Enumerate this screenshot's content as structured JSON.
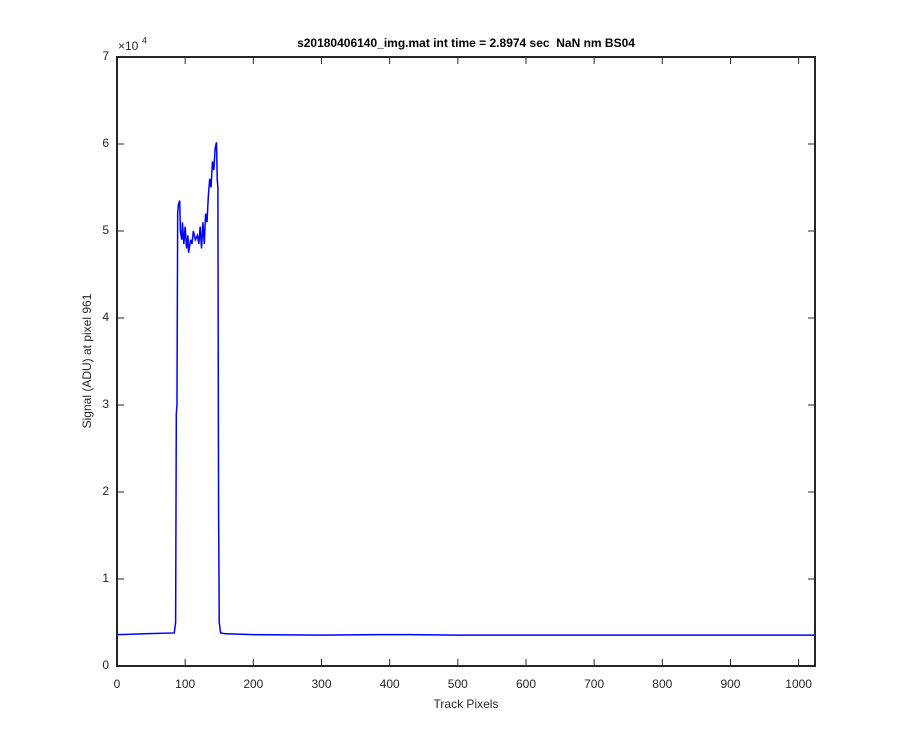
{
  "chart_data": {
    "type": "line",
    "title": "s20180406140_img.mat int time = 2.8974 sec  NaN nm BS04",
    "x_label": "Track Pixels",
    "y_label": "Signal (ADU) at pixel 961",
    "y_multiplier": {
      "base": "×10",
      "exponent": "4"
    },
    "x": [
      0,
      40,
      84,
      86,
      87,
      88,
      89,
      90,
      92,
      93,
      95,
      96,
      98,
      100,
      102,
      104,
      105,
      108,
      110,
      112,
      115,
      118,
      120,
      122,
      124,
      126,
      128,
      130,
      132,
      134,
      136,
      138,
      140,
      142,
      144,
      146,
      147,
      148,
      149,
      150,
      152,
      160,
      200,
      300,
      385,
      400,
      430,
      500,
      1024
    ],
    "series": [
      {
        "color": "#0000ff",
        "values": [
          0.36,
          0.37,
          0.38,
          0.5,
          2.9,
          3.0,
          5.2,
          5.3,
          5.35,
          5.0,
          4.9,
          5.1,
          4.85,
          5.05,
          4.8,
          4.95,
          4.75,
          4.9,
          4.85,
          5.0,
          4.9,
          4.95,
          4.85,
          5.05,
          4.8,
          5.1,
          4.85,
          5.2,
          5.1,
          5.4,
          5.6,
          5.5,
          5.8,
          5.7,
          5.95,
          6.02,
          5.6,
          5.5,
          1.8,
          0.5,
          0.38,
          0.37,
          0.36,
          0.355,
          0.36,
          0.36,
          0.36,
          0.355,
          0.355
        ]
      }
    ],
    "xlim": [
      0,
      1024
    ],
    "ylim": [
      0,
      7
    ],
    "xticks": [
      0,
      100,
      200,
      300,
      400,
      500,
      600,
      700,
      800,
      900,
      1000
    ],
    "yticks": [
      0,
      1,
      2,
      3,
      4,
      5,
      6,
      7
    ],
    "grid": false
  }
}
